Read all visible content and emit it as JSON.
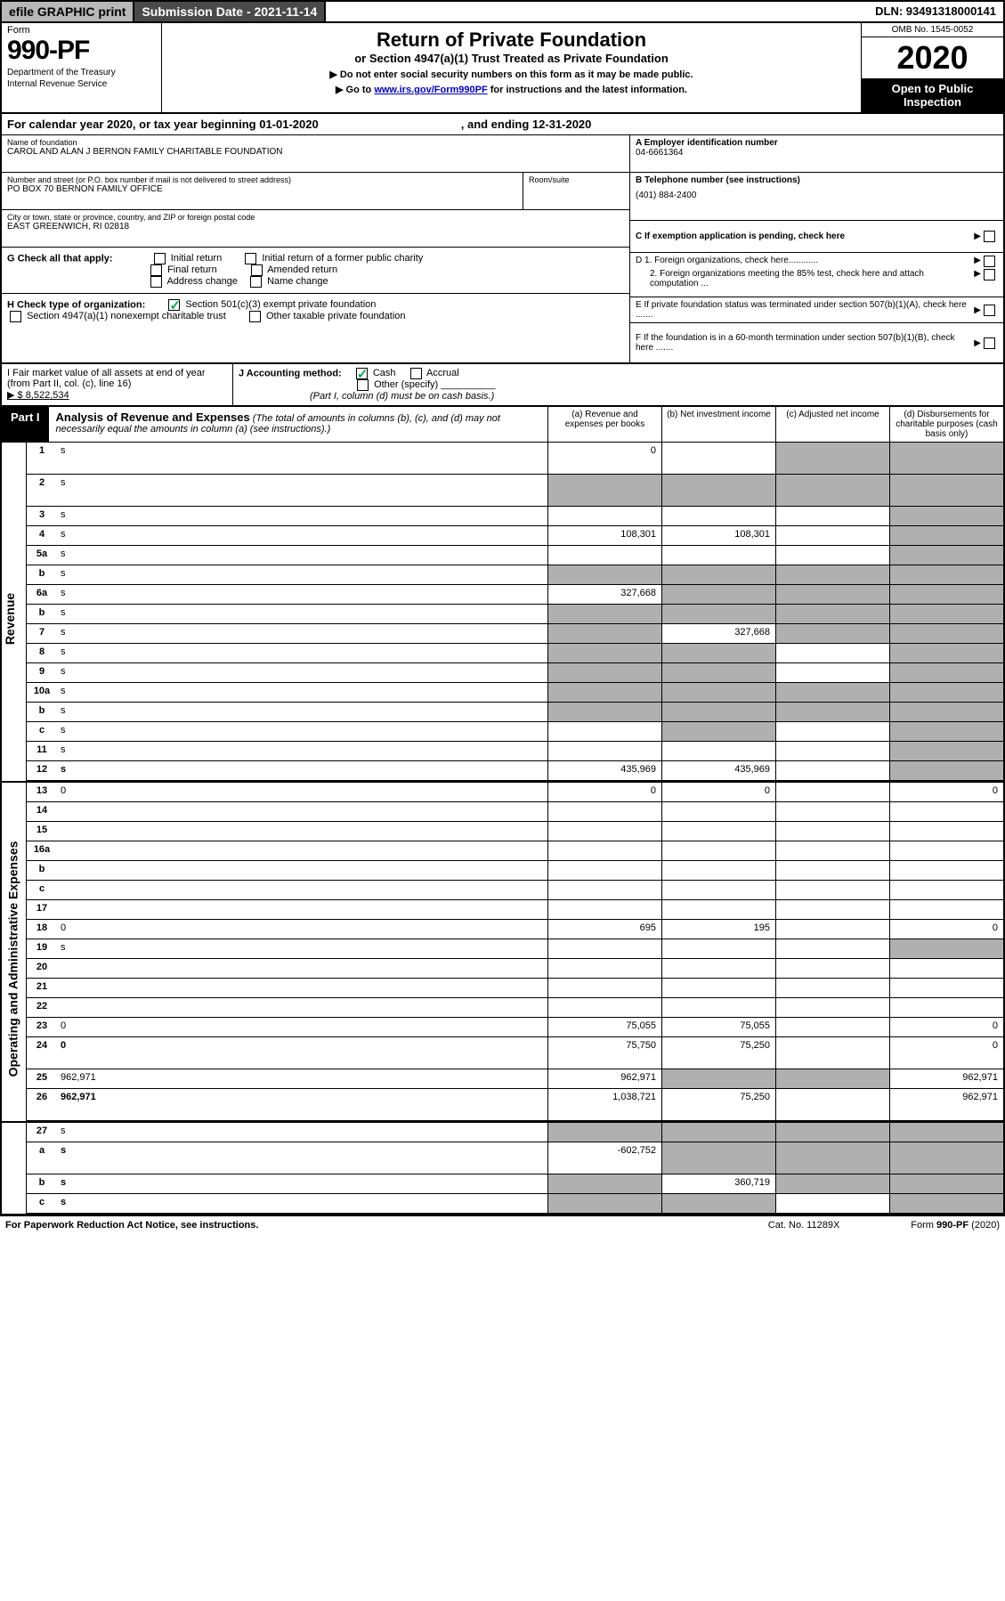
{
  "topbar": {
    "efile": "efile GRAPHIC print",
    "subdate_label": "Submission Date - 2021-11-14",
    "dln": "DLN: 93491318000141"
  },
  "header": {
    "form_label": "Form",
    "form_number": "990-PF",
    "dept1": "Department of the Treasury",
    "dept2": "Internal Revenue Service",
    "title": "Return of Private Foundation",
    "subtitle": "or Section 4947(a)(1) Trust Treated as Private Foundation",
    "instr1": "▶ Do not enter social security numbers on this form as it may be made public.",
    "instr2_pre": "▶ Go to ",
    "instr2_link": "www.irs.gov/Form990PF",
    "instr2_post": " for instructions and the latest information.",
    "omb": "OMB No. 1545-0052",
    "year": "2020",
    "open": "Open to Public Inspection"
  },
  "calyear": {
    "prefix": "For calendar year 2020, or tax year beginning 01-01-2020",
    "middle": ", and ending 12-31-2020"
  },
  "info": {
    "name_label": "Name of foundation",
    "name": "CAROL AND ALAN J BERNON FAMILY CHARITABLE FOUNDATION",
    "addr_label": "Number and street (or P.O. box number if mail is not delivered to street address)",
    "addr": "PO BOX 70 BERNON FAMILY OFFICE",
    "room_label": "Room/suite",
    "city_label": "City or town, state or province, country, and ZIP or foreign postal code",
    "city": "EAST GREENWICH, RI  02818",
    "ein_label": "A Employer identification number",
    "ein": "04-6661364",
    "phone_label": "B Telephone number (see instructions)",
    "phone": "(401) 884-2400",
    "c_label": "C If exemption application is pending, check here",
    "d1": "D 1. Foreign organizations, check here............",
    "d2": "2. Foreign organizations meeting the 85% test, check here and attach computation ...",
    "e_label": "E  If private foundation status was terminated under section 507(b)(1)(A), check here .......",
    "f_label": "F  If the foundation is in a 60-month termination under section 507(b)(1)(B), check here ......."
  },
  "g": {
    "label": "G Check all that apply:",
    "opts": [
      "Initial return",
      "Initial return of a former public charity",
      "Final return",
      "Amended return",
      "Address change",
      "Name change"
    ]
  },
  "h": {
    "label": "H Check type of organization:",
    "opt1": "Section 501(c)(3) exempt private foundation",
    "opt2": "Section 4947(a)(1) nonexempt charitable trust",
    "opt3": "Other taxable private foundation"
  },
  "i": {
    "label": "I Fair market value of all assets at end of year (from Part II, col. (c), line 16)",
    "value": "▶ $  8,522,534"
  },
  "j": {
    "label": "J Accounting method:",
    "cash": "Cash",
    "accrual": "Accrual",
    "other": "Other (specify)",
    "note": "(Part I, column (d) must be on cash basis.)"
  },
  "part1": {
    "label": "Part I",
    "title": "Analysis of Revenue and Expenses",
    "title_note": "(The total of amounts in columns (b), (c), and (d) may not necessarily equal the amounts in column (a) (see instructions).)",
    "col_a": "(a) Revenue and expenses per books",
    "col_b": "(b) Net investment income",
    "col_c": "(c) Adjusted net income",
    "col_d": "(d) Disbursements for charitable purposes (cash basis only)"
  },
  "sections": {
    "revenue": "Revenue",
    "expenses": "Operating and Administrative Expenses"
  },
  "rows": [
    {
      "n": "1",
      "d": "s",
      "a": "0",
      "b": "",
      "c": "s",
      "tall": true
    },
    {
      "n": "2",
      "d": "s",
      "a": "s",
      "b": "s",
      "c": "s",
      "tall": true,
      "bold_not": true
    },
    {
      "n": "3",
      "d": "s",
      "a": "",
      "b": "",
      "c": ""
    },
    {
      "n": "4",
      "d": "s",
      "a": "108,301",
      "b": "108,301",
      "c": ""
    },
    {
      "n": "5a",
      "d": "s",
      "a": "",
      "b": "",
      "c": ""
    },
    {
      "n": "b",
      "d": "s",
      "a": "s",
      "b": "s",
      "c": "s"
    },
    {
      "n": "6a",
      "d": "s",
      "a": "327,668",
      "b": "s",
      "c": "s"
    },
    {
      "n": "b",
      "d": "s",
      "a": "s",
      "b": "s",
      "c": "s"
    },
    {
      "n": "7",
      "d": "s",
      "a": "s",
      "b": "327,668",
      "c": "s"
    },
    {
      "n": "8",
      "d": "s",
      "a": "s",
      "b": "s",
      "c": ""
    },
    {
      "n": "9",
      "d": "s",
      "a": "s",
      "b": "s",
      "c": ""
    },
    {
      "n": "10a",
      "d": "s",
      "a": "s",
      "b": "s",
      "c": "s"
    },
    {
      "n": "b",
      "d": "s",
      "a": "s",
      "b": "s",
      "c": "s"
    },
    {
      "n": "c",
      "d": "s",
      "a": "",
      "b": "s",
      "c": ""
    },
    {
      "n": "11",
      "d": "s",
      "a": "",
      "b": "",
      "c": ""
    },
    {
      "n": "12",
      "d": "s",
      "a": "435,969",
      "b": "435,969",
      "c": "",
      "bold": true
    }
  ],
  "exp_rows": [
    {
      "n": "13",
      "d": "0",
      "a": "0",
      "b": "0",
      "c": ""
    },
    {
      "n": "14",
      "d": "",
      "a": "",
      "b": "",
      "c": ""
    },
    {
      "n": "15",
      "d": "",
      "a": "",
      "b": "",
      "c": ""
    },
    {
      "n": "16a",
      "d": "",
      "a": "",
      "b": "",
      "c": ""
    },
    {
      "n": "b",
      "d": "",
      "a": "",
      "b": "",
      "c": ""
    },
    {
      "n": "c",
      "d": "",
      "a": "",
      "b": "",
      "c": ""
    },
    {
      "n": "17",
      "d": "",
      "a": "",
      "b": "",
      "c": ""
    },
    {
      "n": "18",
      "d": "0",
      "a": "695",
      "b": "195",
      "c": ""
    },
    {
      "n": "19",
      "d": "s",
      "a": "",
      "b": "",
      "c": ""
    },
    {
      "n": "20",
      "d": "",
      "a": "",
      "b": "",
      "c": ""
    },
    {
      "n": "21",
      "d": "",
      "a": "",
      "b": "",
      "c": ""
    },
    {
      "n": "22",
      "d": "",
      "a": "",
      "b": "",
      "c": ""
    },
    {
      "n": "23",
      "d": "0",
      "a": "75,055",
      "b": "75,055",
      "c": ""
    },
    {
      "n": "24",
      "d": "0",
      "a": "75,750",
      "b": "75,250",
      "c": "",
      "bold": true,
      "tall": true
    },
    {
      "n": "25",
      "d": "962,971",
      "a": "962,971",
      "b": "s",
      "c": "s"
    },
    {
      "n": "26",
      "d": "962,971",
      "a": "1,038,721",
      "b": "75,250",
      "c": "",
      "bold": true,
      "tall": true
    }
  ],
  "final_rows": [
    {
      "n": "27",
      "d": "s",
      "a": "s",
      "b": "s",
      "c": "s"
    },
    {
      "n": "a",
      "d": "s",
      "a": "-602,752",
      "b": "s",
      "c": "s",
      "bold": true,
      "tall": true
    },
    {
      "n": "b",
      "d": "s",
      "a": "s",
      "b": "360,719",
      "c": "s",
      "bold": true
    },
    {
      "n": "c",
      "d": "s",
      "a": "s",
      "b": "s",
      "c": "",
      "bold": true
    }
  ],
  "footer": {
    "left": "For Paperwork Reduction Act Notice, see instructions.",
    "mid": "Cat. No. 11289X",
    "right": "Form 990-PF (2020)"
  },
  "colors": {
    "shaded": "#b0b0b0",
    "topbar_gray": "#b8b8b8",
    "topbar_dark": "#4a4a4a",
    "link": "#0000cc",
    "check": "#00aa55"
  }
}
